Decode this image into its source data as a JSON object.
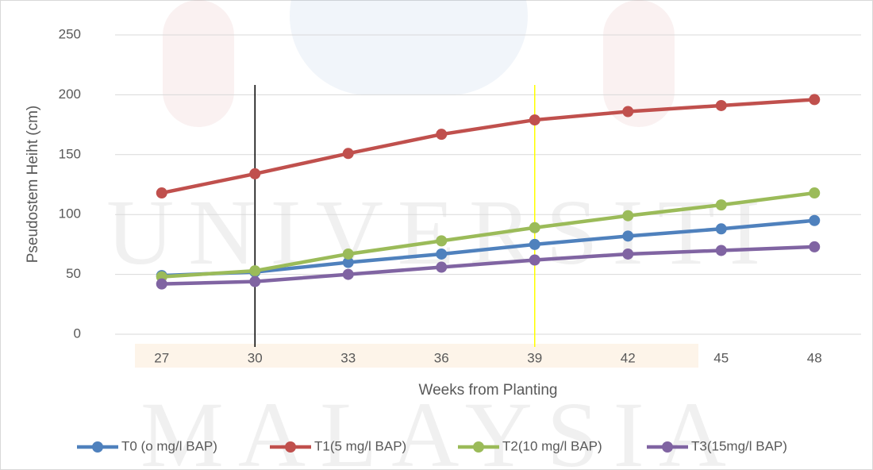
{
  "chart_data": {
    "type": "line",
    "ylabel": "Pseudostem Heiht (cm)",
    "xlabel": "Weeks from Planting",
    "categories": [
      "27",
      "30",
      "33",
      "36",
      "39",
      "42",
      "45",
      "48"
    ],
    "ylim": [
      0,
      250
    ],
    "yticks": [
      0,
      50,
      100,
      150,
      200,
      250
    ],
    "grid": true,
    "legend": "bottom",
    "reference_lines": [
      {
        "category": "30",
        "color": "#000000"
      },
      {
        "category": "39",
        "color": "#ffff00"
      }
    ],
    "watermark": [
      "UNIVERSITI",
      "MALAYSIA"
    ],
    "series": [
      {
        "name": "T0 (o mg/l BAP)",
        "color": "#4f81bd",
        "values": [
          49,
          52,
          60,
          67,
          75,
          82,
          88,
          95
        ]
      },
      {
        "name": "T1(5 mg/l BAP)",
        "color": "#c0504d",
        "values": [
          118,
          134,
          151,
          167,
          179,
          186,
          191,
          196
        ]
      },
      {
        "name": "T2(10 mg/l BAP)",
        "color": "#9bbb59",
        "values": [
          48,
          53,
          67,
          78,
          89,
          99,
          108,
          118
        ]
      },
      {
        "name": "T3(15mg/l BAP)",
        "color": "#8064a2",
        "values": [
          42,
          44,
          50,
          56,
          62,
          67,
          70,
          73
        ]
      }
    ]
  }
}
